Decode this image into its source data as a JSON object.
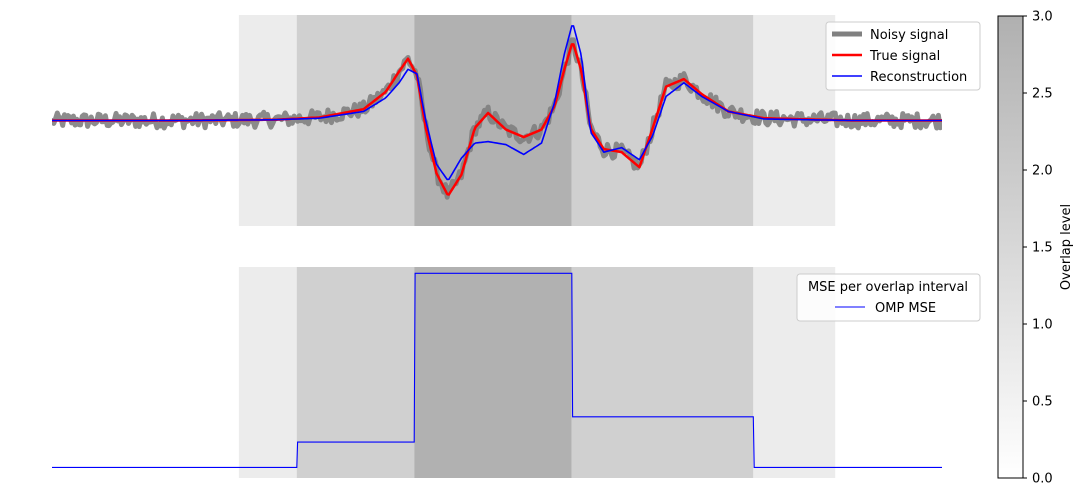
{
  "chart_data": [
    {
      "type": "line",
      "title": "",
      "xlabel": "",
      "ylabel": "",
      "axes_visible": false,
      "xlim": [
        0,
        1000
      ],
      "ylim": [
        -1.4,
        1.4
      ],
      "legend_location": "upper right",
      "overlap_regions": [
        {
          "x": [
            210,
            275
          ],
          "level": 1
        },
        {
          "x": [
            275,
            407
          ],
          "level": 2
        },
        {
          "x": [
            407,
            584
          ],
          "level": 3
        },
        {
          "x": [
            584,
            788
          ],
          "level": 2
        },
        {
          "x": [
            788,
            880
          ],
          "level": 1
        }
      ],
      "series": [
        {
          "name": "Noisy signal",
          "color": "#808080",
          "style": "thick",
          "noise_amplitude": 0.1
        },
        {
          "name": "True signal",
          "color": "#ff0000",
          "style": "medium",
          "x": [
            0,
            150,
            250,
            300,
            350,
            375,
            390,
            400,
            410,
            420,
            432,
            445,
            460,
            475,
            490,
            510,
            530,
            550,
            565,
            575,
            585,
            595,
            605,
            620,
            640,
            660,
            675,
            690,
            710,
            730,
            760,
            800,
            900,
            1000
          ],
          "y": [
            0,
            0,
            0.01,
            0.04,
            0.15,
            0.38,
            0.65,
            0.82,
            0.6,
            -0.1,
            -0.7,
            -1.0,
            -0.72,
            -0.1,
            0.1,
            -0.12,
            -0.22,
            -0.12,
            0.2,
            0.65,
            1.05,
            0.65,
            -0.1,
            -0.38,
            -0.42,
            -0.62,
            -0.1,
            0.45,
            0.55,
            0.35,
            0.12,
            0.03,
            0,
            0
          ]
        },
        {
          "name": "Reconstruction",
          "color": "#0000ff",
          "style": "medium",
          "x": [
            0,
            150,
            250,
            300,
            350,
            375,
            390,
            400,
            410,
            420,
            432,
            445,
            460,
            475,
            490,
            510,
            530,
            550,
            565,
            575,
            585,
            595,
            605,
            620,
            640,
            660,
            675,
            690,
            710,
            730,
            760,
            800,
            900,
            1000
          ],
          "y": [
            0,
            0,
            0.01,
            0.03,
            0.12,
            0.3,
            0.5,
            0.68,
            0.62,
            0.0,
            -0.58,
            -0.8,
            -0.5,
            -0.3,
            -0.28,
            -0.32,
            -0.45,
            -0.3,
            0.25,
            0.85,
            1.3,
            0.85,
            -0.15,
            -0.42,
            -0.36,
            -0.52,
            -0.2,
            0.32,
            0.5,
            0.32,
            0.12,
            0.02,
            0,
            0
          ]
        }
      ]
    },
    {
      "type": "line",
      "title": "",
      "xlabel": "",
      "ylabel": "",
      "axes_visible": false,
      "xlim": [
        0,
        1000
      ],
      "ylim": [
        0,
        1
      ],
      "legend_title": "MSE per overlap interval",
      "legend_location": "upper right",
      "overlap_regions": [
        {
          "x": [
            210,
            275
          ],
          "level": 1
        },
        {
          "x": [
            275,
            407
          ],
          "level": 2
        },
        {
          "x": [
            407,
            584
          ],
          "level": 3
        },
        {
          "x": [
            584,
            788
          ],
          "level": 2
        },
        {
          "x": [
            788,
            880
          ],
          "level": 1
        }
      ],
      "series": [
        {
          "name": "OMP MSE",
          "color": "#0000ff",
          "style": "thin",
          "x": [
            0,
            275,
            276,
            407,
            408,
            584,
            585,
            788,
            789,
            1000
          ],
          "y": [
            0.05,
            0.05,
            0.17,
            0.17,
            0.97,
            0.97,
            0.29,
            0.29,
            0.05,
            0.05
          ]
        }
      ]
    }
  ],
  "colorbar": {
    "label": "Overlap level",
    "min": 0,
    "max": 3,
    "ticks": [
      "0.0",
      "0.5",
      "1.0",
      "1.5",
      "2.0",
      "2.5",
      "3.0"
    ],
    "colormap": "Greys"
  }
}
